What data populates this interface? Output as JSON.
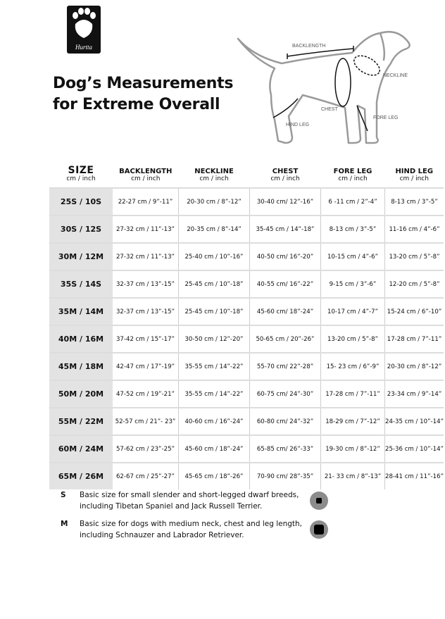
{
  "brand": {
    "logo_text": "Hurtta",
    "icon": "paw-icon"
  },
  "title": {
    "line1": "Dog’s Measurements",
    "line2": "for Extreme Overall"
  },
  "diagram": {
    "labels": {
      "backlength": "BACKLENGTH",
      "neckline": "NECKLINE",
      "chest": "CHEST",
      "fore_leg": "FORE LEG",
      "hind_leg": "HIND LEG"
    }
  },
  "table": {
    "headers": [
      {
        "main": "SIZE",
        "sub": "cm / inch"
      },
      {
        "main": "BACKLENGTH",
        "sub": "cm / inch"
      },
      {
        "main": "NECKLINE",
        "sub": "cm / inch"
      },
      {
        "main": "CHEST",
        "sub": "cm / inch"
      },
      {
        "main": "FORE LEG",
        "sub": "cm / inch"
      },
      {
        "main": "HIND LEG",
        "sub": "cm / inch"
      }
    ],
    "rows": [
      [
        "25S / 10S",
        "22-27 cm / 9”-11”",
        "20-30 cm / 8”-12”",
        "30-40 cm/ 12”-16”",
        "6 -11 cm / 2”-4”",
        "8-13 cm / 3”-5”"
      ],
      [
        "30S / 12S",
        "27-32 cm / 11”-13”",
        "20-35 cm / 8”-14”",
        "35-45 cm / 14”-18”",
        "8-13 cm / 3”-5”",
        "11-16 cm / 4”-6”"
      ],
      [
        "30M / 12M",
        "27-32 cm / 11”-13”",
        "25-40 cm / 10”-16”",
        "40-50 cm/ 16”-20”",
        "10-15 cm / 4”-6”",
        "13-20 cm / 5”-8”"
      ],
      [
        "35S / 14S",
        "32-37 cm / 13”-15”",
        "25-45 cm / 10”-18”",
        "40-55 cm/ 16”-22”",
        "9-15 cm / 3”-6”",
        "12-20 cm / 5”-8”"
      ],
      [
        "35M / 14M",
        "32-37 cm / 13”-15”",
        "25-45 cm / 10”-18”",
        "45-60 cm/ 18”-24”",
        "10-17 cm / 4”-7”",
        "15-24 cm / 6”-10”"
      ],
      [
        "40M / 16M",
        "37-42 cm / 15”-17”",
        "30-50 cm / 12”-20”",
        "50-65 cm / 20”-26”",
        "13-20 cm / 5”-8”",
        "17-28 cm / 7”-11”"
      ],
      [
        "45M / 18M",
        "42-47 cm / 17”-19”",
        "35-55 cm / 14”-22”",
        "55-70 cm/ 22”-28”",
        "15- 23 cm / 6”-9”",
        "20-30 cm / 8”-12”"
      ],
      [
        "50M / 20M",
        "47-52 cm / 19”-21”",
        "35-55 cm / 14”-22”",
        "60-75 cm/ 24”-30”",
        "17-28 cm / 7”-11”",
        "23-34 cm / 9”-14”"
      ],
      [
        "55M / 22M",
        "52-57 cm / 21”- 23”",
        "40-60 cm / 16”-24”",
        "60-80 cm/ 24”-32”",
        "18-29 cm / 7”-12”",
        "24-35 cm / 10”-14”"
      ],
      [
        "60M / 24M",
        "57-62 cm / 23”-25”",
        "45-60 cm / 18”-24”",
        "65-85 cm/ 26”-33”",
        "19-30 cm / 8”-12”",
        "25-36 cm / 10”-14”"
      ],
      [
        "65M / 26M",
        "62-67 cm / 25”-27”",
        "45-65 cm / 18”-26”",
        "70-90 cm/ 28”-35”",
        "21- 33 cm / 8”-13”",
        "28-41 cm / 11”-16”"
      ]
    ]
  },
  "notes": [
    {
      "key": "S",
      "text": "Basic size for small slender and short-legged dwarf breeds, including Tibetan Spaniel and Jack Russell Terrier.",
      "icon": "small-size-badge-icon"
    },
    {
      "key": "M",
      "text": "Basic size for dogs with medium neck, chest and leg length, including Schnauzer and Labrador Retriever.",
      "icon": "medium-size-badge-icon"
    }
  ],
  "colors": {
    "size_column_bg": "#e3e3e3",
    "badge_gray": "#8c8c8c",
    "text": "#111111"
  }
}
